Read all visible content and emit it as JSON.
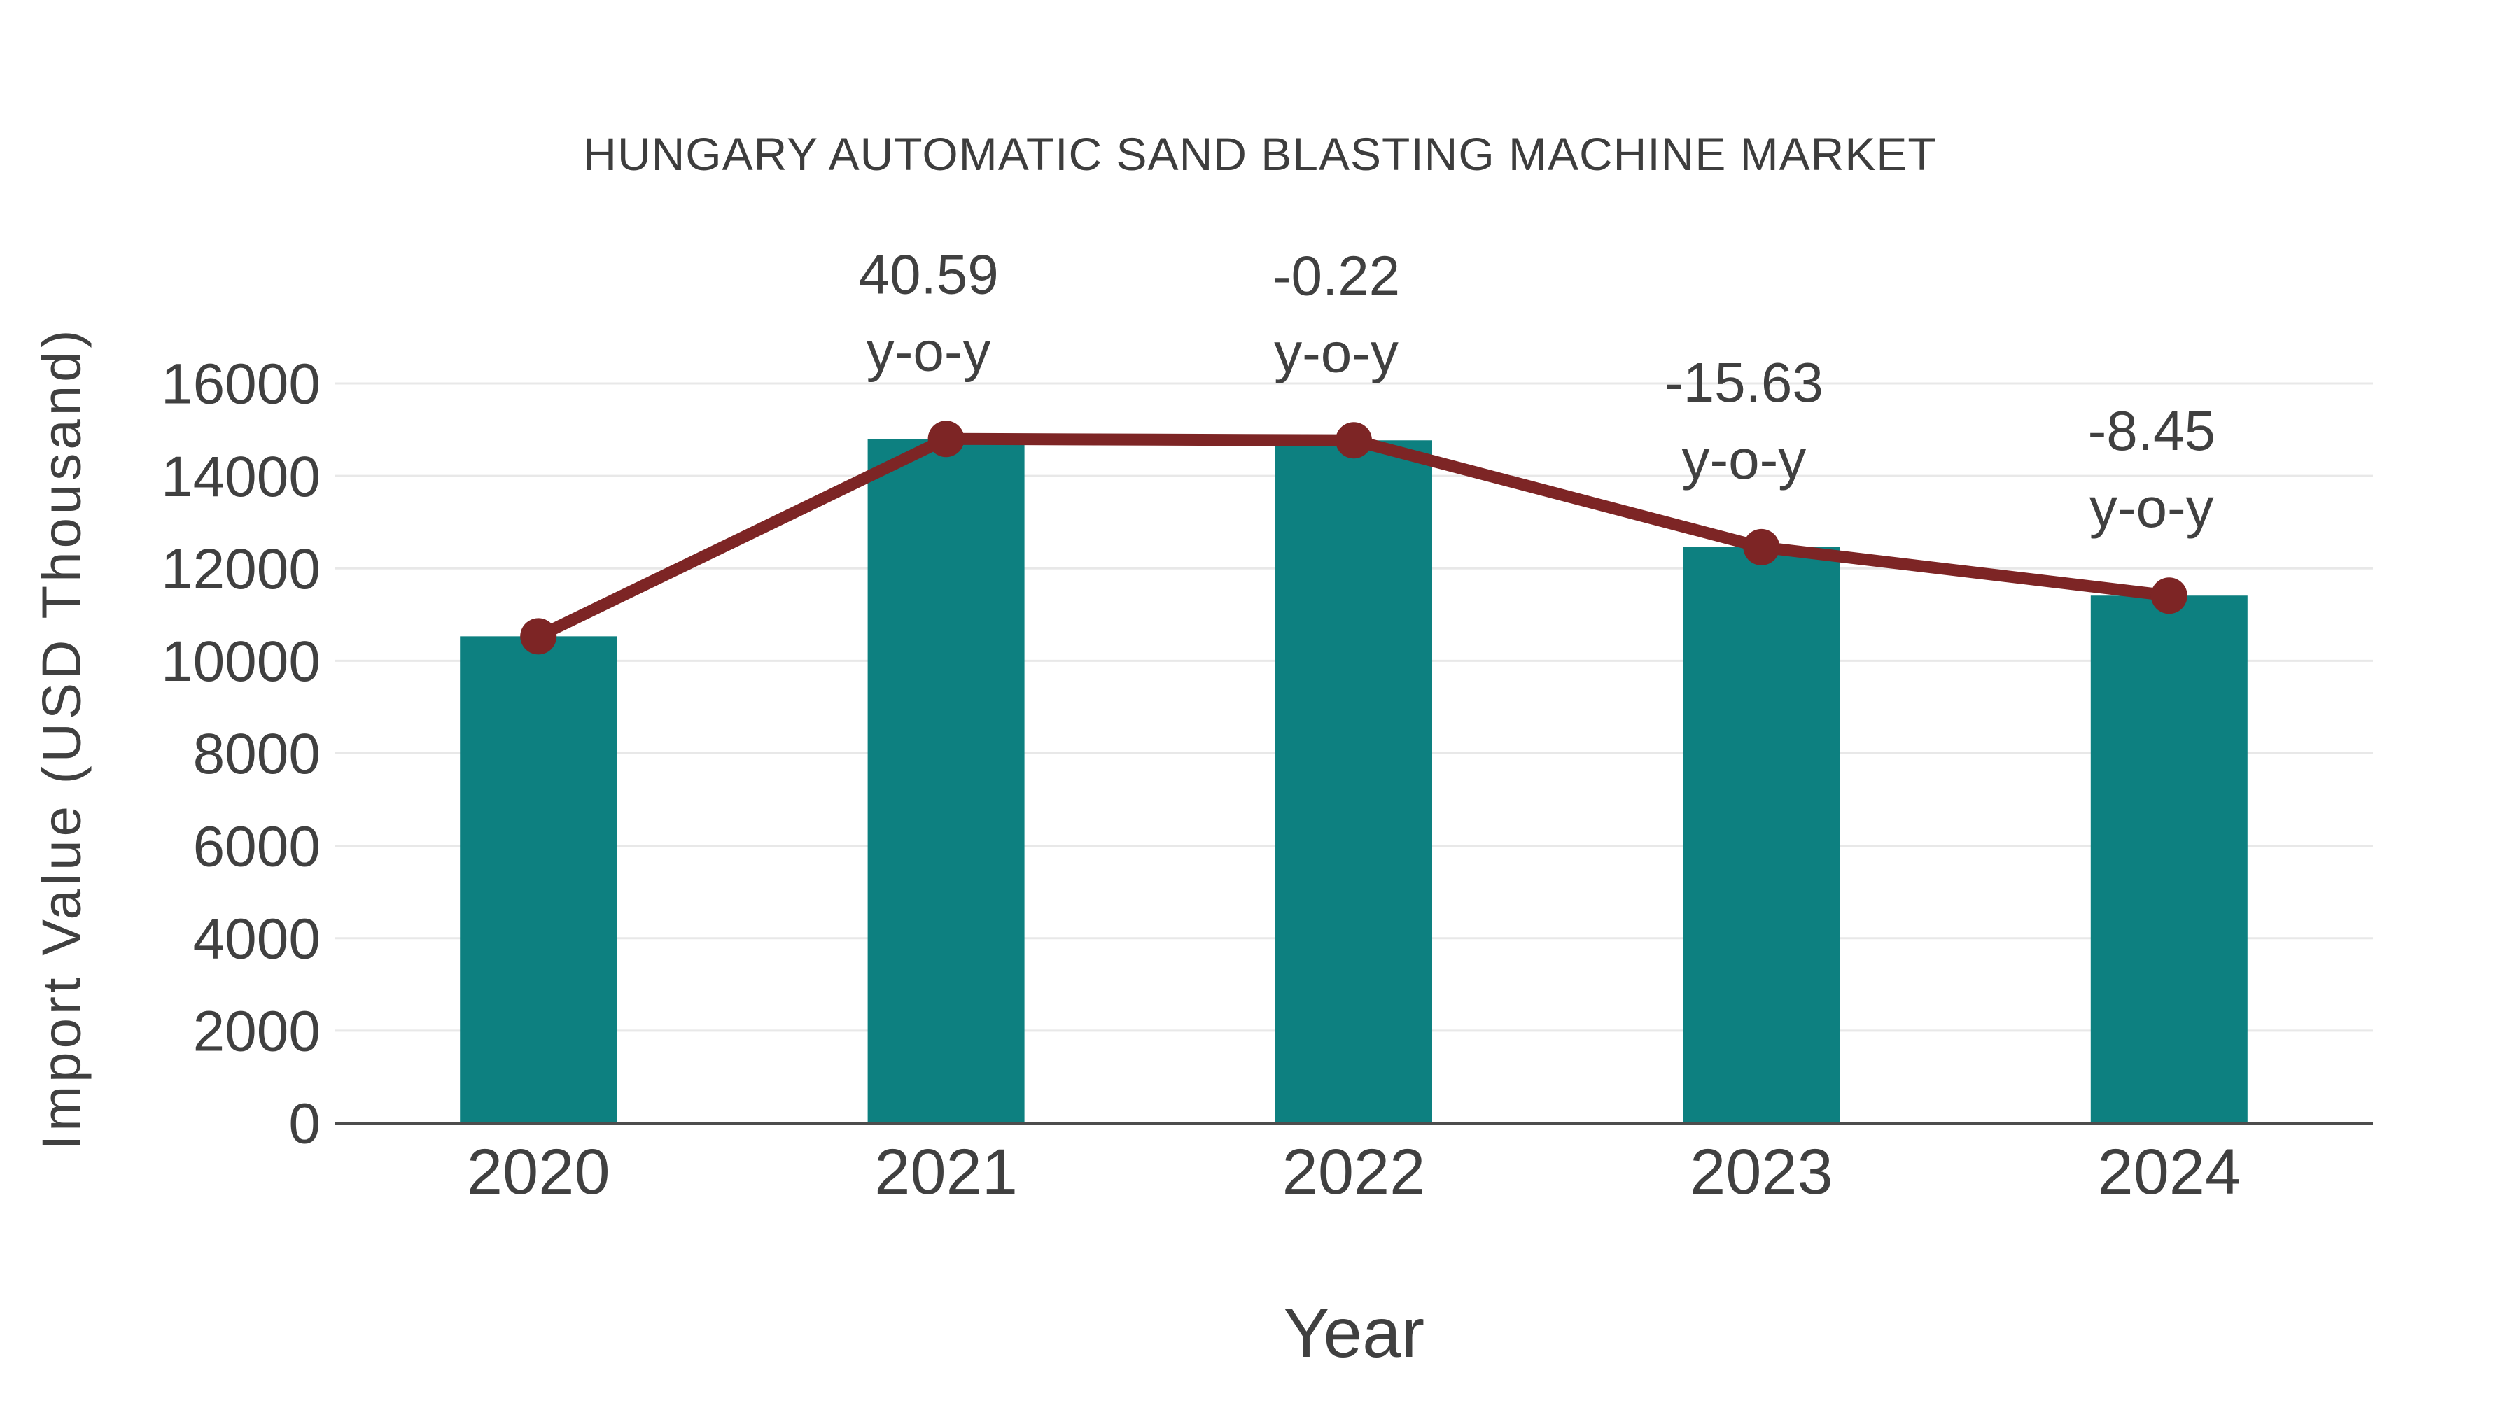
{
  "colors": {
    "background": "#ffffff",
    "bar": "#0d8080",
    "line": "#7d2525",
    "marker": "#7d2525",
    "text": "#404040",
    "title_text": "#3d3d3d",
    "grid": "#e8e8e8",
    "axis_line": "#4d4d4d"
  },
  "chart_data": {
    "type": "bar+line",
    "title": "HUNGARY AUTOMATIC SAND BLASTING MACHINE MARKET",
    "xlabel": "Year",
    "ylabel": "Import Value (USD Thousand)",
    "categories": [
      "2020",
      "2021",
      "2022",
      "2023",
      "2024"
    ],
    "series": [
      {
        "name": "import-value-bars",
        "type": "bar",
        "values": [
          10530,
          14800,
          14770,
          12460,
          11410
        ]
      },
      {
        "name": "import-value-trend",
        "type": "line",
        "values": [
          10530,
          14800,
          14770,
          12460,
          11410
        ]
      }
    ],
    "yoy_annotations": [
      {
        "category": "2021",
        "line1": "40.59",
        "line2": "y-o-y"
      },
      {
        "category": "2022",
        "line1": "-0.22",
        "line2": "y-o-y"
      },
      {
        "category": "2023",
        "line1": "-15.63",
        "line2": "y-o-y"
      },
      {
        "category": "2024",
        "line1": "-8.45",
        "line2": "y-o-y"
      }
    ],
    "ylim": [
      0,
      16000
    ],
    "yticks": [
      0,
      2000,
      4000,
      6000,
      8000,
      10000,
      12000,
      14000,
      16000
    ],
    "grid": true,
    "legend": false
  }
}
